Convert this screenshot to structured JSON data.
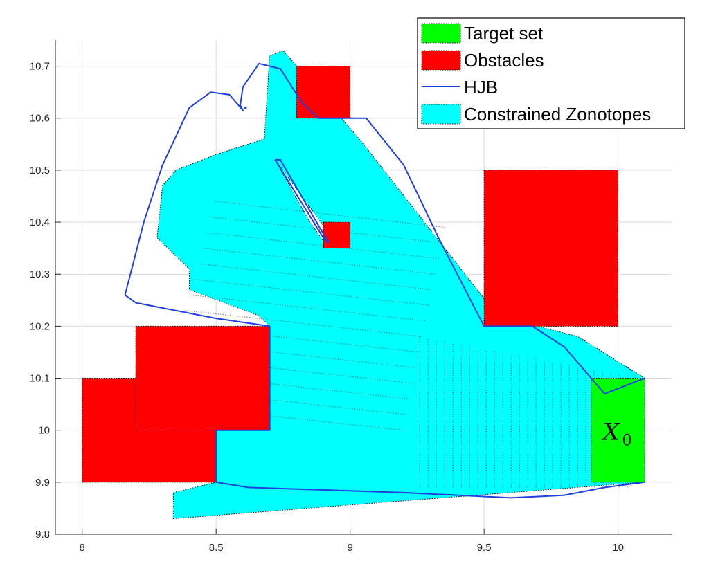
{
  "chart_data": {
    "type": "area",
    "xlim": [
      7.9,
      10.2
    ],
    "ylim": [
      9.8,
      10.75
    ],
    "x_ticks": [
      {
        "value": 8,
        "label": "8"
      },
      {
        "value": 8.5,
        "label": "8.5"
      },
      {
        "value": 9,
        "label": "9"
      },
      {
        "value": 9.5,
        "label": "9.5"
      },
      {
        "value": 10,
        "label": "10"
      }
    ],
    "y_ticks": [
      {
        "value": 9.8,
        "label": "9.8"
      },
      {
        "value": 9.9,
        "label": "9.9"
      },
      {
        "value": 10.0,
        "label": "10"
      },
      {
        "value": 10.1,
        "label": "10.1"
      },
      {
        "value": 10.2,
        "label": "10.2"
      },
      {
        "value": 10.3,
        "label": "10.3"
      },
      {
        "value": 10.4,
        "label": "10.4"
      },
      {
        "value": 10.5,
        "label": "10.5"
      },
      {
        "value": 10.6,
        "label": "10.6"
      },
      {
        "value": 10.7,
        "label": "10.7"
      }
    ],
    "grid": true,
    "legend_position": "top-right",
    "colors": {
      "target": "#00ff00",
      "obstacles": "#ff0000",
      "hjb": "#1f3fe0",
      "zonotopes": "#00ffff",
      "grid": "#d9d9d9",
      "axis": "#262626"
    },
    "legend": [
      {
        "key": "target",
        "label": "Target set",
        "kind": "patch",
        "color": "#00ff00"
      },
      {
        "key": "obstacles",
        "label": "Obstacles",
        "kind": "patch",
        "color": "#ff0000"
      },
      {
        "key": "hjb",
        "label": "HJB",
        "kind": "line",
        "color": "#1f3fe0"
      },
      {
        "key": "zonotopes",
        "label": "Constrained Zonotopes",
        "kind": "patch",
        "color": "#00ffff"
      }
    ],
    "target_set": {
      "x": [
        9.9,
        10.1
      ],
      "y": [
        9.9,
        10.1
      ],
      "label_main": "X",
      "label_sub": "0"
    },
    "obstacles": [
      {
        "x": [
          8.0,
          8.5
        ],
        "y": [
          9.9,
          10.1
        ]
      },
      {
        "x": [
          8.2,
          8.7
        ],
        "y": [
          10.0,
          10.2
        ]
      },
      {
        "x": [
          8.8,
          9.0
        ],
        "y": [
          10.6,
          10.7
        ]
      },
      {
        "x": [
          8.9,
          9.0
        ],
        "y": [
          10.35,
          10.4
        ]
      },
      {
        "x": [
          9.5,
          10.0
        ],
        "y": [
          10.2,
          10.5
        ]
      }
    ],
    "zonotope_region": [
      [
        8.34,
        9.83
      ],
      [
        10.1,
        9.9
      ],
      [
        10.1,
        10.1
      ],
      [
        9.85,
        10.18
      ],
      [
        9.55,
        10.22
      ],
      [
        9.05,
        10.55
      ],
      [
        8.87,
        10.66
      ],
      [
        8.75,
        10.73
      ],
      [
        8.7,
        10.72
      ],
      [
        8.68,
        10.56
      ],
      [
        8.5,
        10.53
      ],
      [
        8.35,
        10.5
      ],
      [
        8.3,
        10.47
      ],
      [
        8.28,
        10.37
      ],
      [
        8.4,
        10.31
      ],
      [
        8.4,
        10.27
      ],
      [
        8.66,
        10.22
      ],
      [
        8.7,
        10.2
      ],
      [
        8.7,
        10.0
      ],
      [
        8.5,
        10.0
      ],
      [
        8.5,
        9.9
      ],
      [
        8.34,
        9.88
      ]
    ],
    "zonotope_hole": [
      [
        8.72,
        10.52
      ],
      [
        8.92,
        10.38
      ],
      [
        8.92,
        10.35
      ],
      [
        8.85,
        10.4
      ]
    ],
    "hjb_curve": [
      [
        10.1,
        10.1
      ],
      [
        9.95,
        10.07
      ],
      [
        9.8,
        10.16
      ],
      [
        9.68,
        10.2
      ],
      [
        9.5,
        10.2
      ],
      [
        9.33,
        10.37
      ],
      [
        9.2,
        10.51
      ],
      [
        9.06,
        10.6
      ],
      [
        8.88,
        10.6
      ],
      [
        8.82,
        10.63
      ],
      [
        8.74,
        10.695
      ],
      [
        8.66,
        10.705
      ],
      [
        8.6,
        10.66
      ],
      [
        8.59,
        10.625
      ],
      [
        8.6,
        10.615
      ],
      [
        8.55,
        10.645
      ],
      [
        8.48,
        10.65
      ],
      [
        8.4,
        10.62
      ],
      [
        8.3,
        10.51
      ],
      [
        8.23,
        10.4
      ],
      [
        8.16,
        10.26
      ],
      [
        8.2,
        10.245
      ],
      [
        8.5,
        10.215
      ],
      [
        8.7,
        10.2
      ],
      [
        8.7,
        10.0
      ],
      [
        8.5,
        10.0
      ],
      [
        8.5,
        9.9
      ],
      [
        8.62,
        9.89
      ],
      [
        9.2,
        9.88
      ],
      [
        9.6,
        9.87
      ],
      [
        9.8,
        9.875
      ],
      [
        9.95,
        9.89
      ],
      [
        10.1,
        9.9
      ]
    ],
    "hjb_inner_loop": [
      [
        8.72,
        10.52
      ],
      [
        8.9,
        10.37
      ],
      [
        8.92,
        10.36
      ],
      [
        8.74,
        10.52
      ],
      [
        8.72,
        10.52
      ]
    ],
    "hjb_dot": [
      8.61,
      10.62
    ]
  }
}
